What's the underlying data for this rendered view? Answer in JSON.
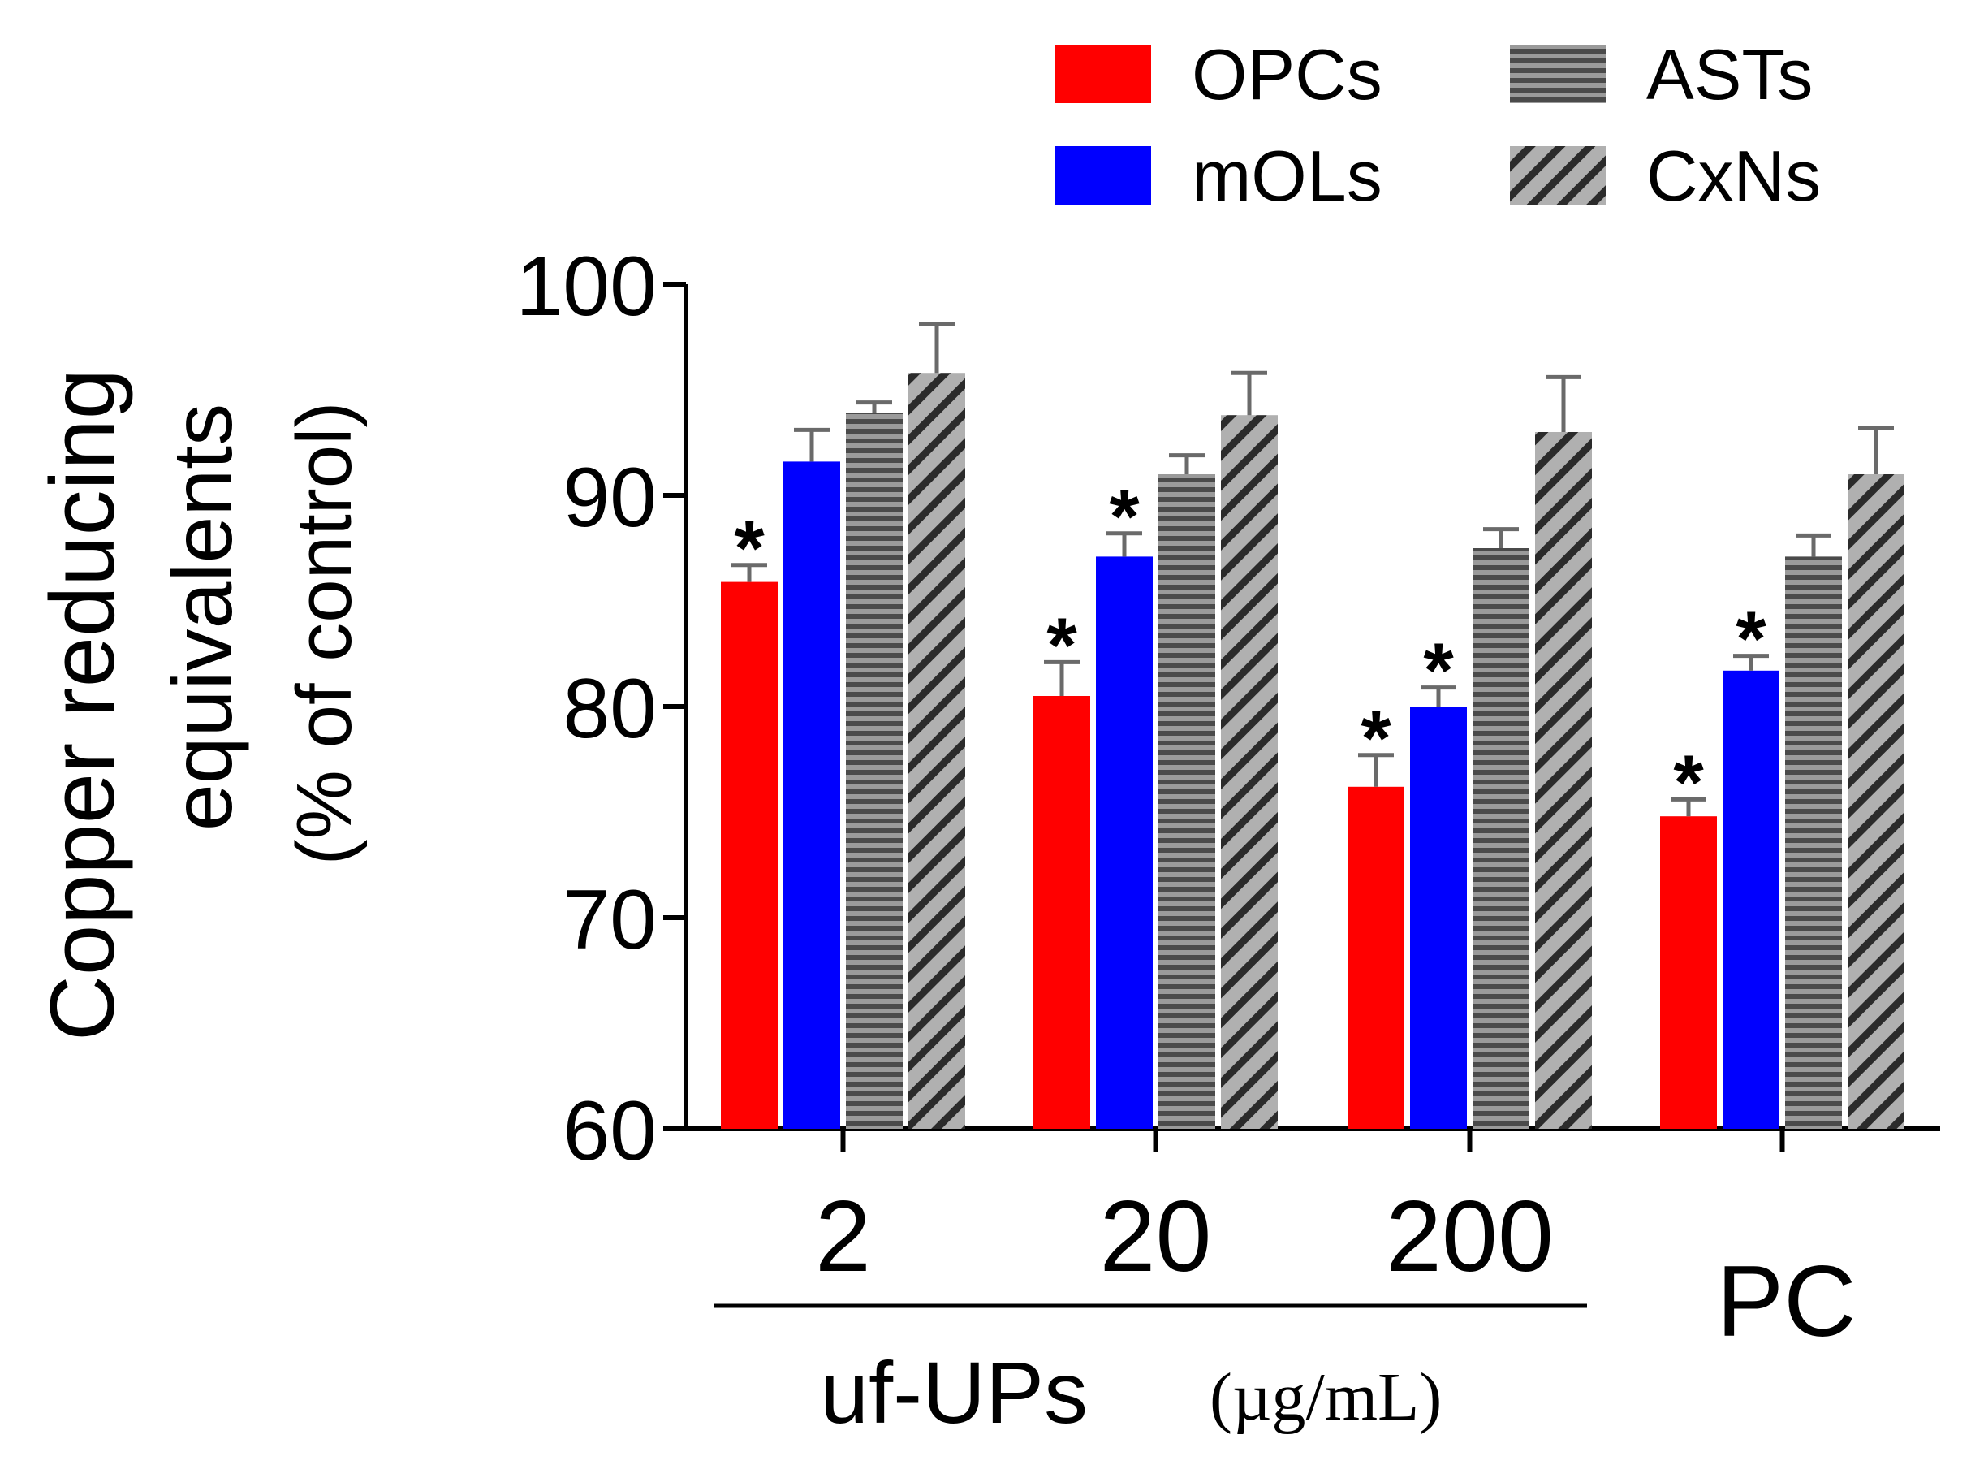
{
  "chart_data": {
    "type": "bar",
    "ylabel_lines": [
      "Copper reducing",
      "equivalents",
      "(% of control)"
    ],
    "ylim": [
      60,
      100
    ],
    "yticks": [
      60,
      70,
      80,
      90,
      100
    ],
    "categories": [
      "2",
      "20",
      "200",
      "PC"
    ],
    "group_label": "uf-UPs",
    "group_unit": "(µg/mL)",
    "significance_marker": "*",
    "legend_position": "top-right",
    "series": [
      {
        "name": "OPCs",
        "color": "#ff0000",
        "fill": "solid",
        "values": [
          85.9,
          80.5,
          76.2,
          74.8
        ],
        "errors": [
          0.8,
          1.6,
          1.5,
          0.8
        ],
        "significant": [
          true,
          true,
          true,
          true
        ]
      },
      {
        "name": "mOLs",
        "color": "#0000ff",
        "fill": "solid",
        "values": [
          91.6,
          87.1,
          80.0,
          81.7
        ],
        "errors": [
          1.5,
          1.1,
          0.9,
          0.7
        ],
        "significant": [
          false,
          true,
          true,
          true
        ]
      },
      {
        "name": "ASTs",
        "color": "#808080",
        "fill": "horizontal-stripes",
        "values": [
          93.9,
          91.0,
          87.5,
          87.1
        ],
        "errors": [
          0.5,
          0.9,
          0.9,
          1.0
        ],
        "significant": [
          false,
          false,
          false,
          false
        ]
      },
      {
        "name": "CxNs",
        "color": "#a0a0a0",
        "fill": "diagonal-stripes",
        "values": [
          95.8,
          93.8,
          93.0,
          91.0
        ],
        "errors": [
          2.3,
          2.0,
          2.6,
          2.2
        ],
        "significant": [
          false,
          false,
          false,
          false
        ]
      }
    ]
  }
}
